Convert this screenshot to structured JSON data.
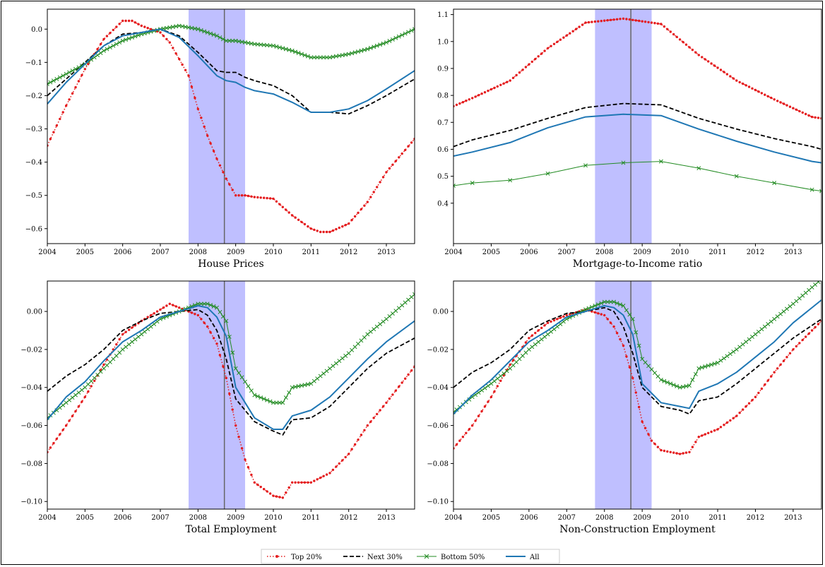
{
  "colors": {
    "top20": "#e41a1c",
    "next30": "#000000",
    "bottom50": "#228b22",
    "all": "#1f77b4",
    "recession": "#6666ff"
  },
  "legend": [
    "Top 20%",
    "Next 30%",
    "Bottom 50%",
    "All"
  ],
  "chart_data": [
    {
      "type": "line",
      "xlabel": "House Prices",
      "xlim": [
        2004,
        2013.75
      ],
      "ylim": [
        -0.645,
        0.06
      ],
      "xticks": [
        2004,
        2005,
        2006,
        2007,
        2008,
        2009,
        2010,
        2011,
        2012,
        2013
      ],
      "yticks": [
        0.0,
        -0.1,
        -0.2,
        -0.3,
        -0.4,
        -0.5,
        -0.6
      ],
      "recession_band": [
        2007.75,
        2009.25
      ],
      "vline": 2008.7,
      "series": [
        {
          "name": "Top 20%",
          "style": "dot",
          "x": [
            2004,
            2004.5,
            2005,
            2005.5,
            2006,
            2006.25,
            2006.5,
            2007,
            2007.25,
            2007.75,
            2008,
            2008.25,
            2008.5,
            2008.75,
            2009,
            2009.25,
            2009.5,
            2010,
            2010.5,
            2011,
            2011.25,
            2011.5,
            2012,
            2012.5,
            2013,
            2013.75
          ],
          "y": [
            -0.35,
            -0.23,
            -0.12,
            -0.03,
            0.025,
            0.025,
            0.01,
            -0.01,
            -0.04,
            -0.14,
            -0.24,
            -0.32,
            -0.39,
            -0.45,
            -0.5,
            -0.5,
            -0.505,
            -0.51,
            -0.56,
            -0.6,
            -0.61,
            -0.61,
            -0.585,
            -0.52,
            -0.43,
            -0.33
          ]
        },
        {
          "name": "Next 30%",
          "style": "dash",
          "x": [
            2004,
            2004.5,
            2005,
            2005.5,
            2006,
            2006.5,
            2007,
            2007.5,
            2008,
            2008.5,
            2008.75,
            2009,
            2009.25,
            2009.5,
            2010,
            2010.5,
            2011,
            2011.5,
            2012,
            2012.5,
            2013,
            2013.75
          ],
          "y": [
            -0.2,
            -0.15,
            -0.1,
            -0.05,
            -0.015,
            -0.01,
            0.0,
            -0.02,
            -0.07,
            -0.125,
            -0.13,
            -0.13,
            -0.145,
            -0.155,
            -0.17,
            -0.2,
            -0.25,
            -0.25,
            -0.255,
            -0.23,
            -0.2,
            -0.15
          ]
        },
        {
          "name": "Bottom 50%",
          "style": "x",
          "x": [
            2004,
            2004.5,
            2005,
            2005.5,
            2006,
            2006.5,
            2007,
            2007.5,
            2008,
            2008.5,
            2008.75,
            2009,
            2009.5,
            2010,
            2010.5,
            2011,
            2011.5,
            2012,
            2012.5,
            2013,
            2013.75
          ],
          "y": [
            -0.165,
            -0.135,
            -0.105,
            -0.065,
            -0.035,
            -0.015,
            0.0,
            0.01,
            0.0,
            -0.02,
            -0.035,
            -0.035,
            -0.045,
            -0.05,
            -0.065,
            -0.085,
            -0.085,
            -0.075,
            -0.06,
            -0.04,
            0.0
          ]
        },
        {
          "name": "All",
          "style": "solid",
          "x": [
            2004,
            2004.5,
            2005,
            2005.5,
            2006,
            2006.5,
            2007,
            2007.5,
            2008,
            2008.5,
            2008.75,
            2009,
            2009.25,
            2009.5,
            2010,
            2010.5,
            2011,
            2011.5,
            2012,
            2012.5,
            2013,
            2013.75
          ],
          "y": [
            -0.225,
            -0.16,
            -0.105,
            -0.05,
            -0.02,
            -0.01,
            0.0,
            -0.025,
            -0.08,
            -0.14,
            -0.155,
            -0.16,
            -0.175,
            -0.185,
            -0.195,
            -0.22,
            -0.25,
            -0.25,
            -0.24,
            -0.215,
            -0.18,
            -0.125
          ]
        }
      ]
    },
    {
      "type": "line",
      "xlabel": "Mortgage-to-Income ratio",
      "xlim": [
        2004,
        2013.75
      ],
      "ylim": [
        0.25,
        1.12
      ],
      "xticks": [
        2004,
        2005,
        2006,
        2007,
        2008,
        2009,
        2010,
        2011,
        2012,
        2013
      ],
      "yticks": [
        1.1,
        1.0,
        0.9,
        0.8,
        0.7,
        0.6,
        0.5,
        0.4
      ],
      "recession_band": [
        2007.75,
        2009.25
      ],
      "vline": 2008.7,
      "series": [
        {
          "name": "Top 20%",
          "style": "dot",
          "x": [
            2004,
            2004.5,
            2005.5,
            2006.5,
            2007.5,
            2008.5,
            2009.5,
            2010.5,
            2011.5,
            2012.5,
            2013.5,
            2013.75
          ],
          "y": [
            0.76,
            0.79,
            0.855,
            0.975,
            1.07,
            1.085,
            1.065,
            0.95,
            0.855,
            0.785,
            0.72,
            0.715
          ]
        },
        {
          "name": "Next 30%",
          "style": "dash",
          "x": [
            2004,
            2004.5,
            2005.5,
            2006.5,
            2007.5,
            2008.5,
            2009.5,
            2010.5,
            2011.5,
            2012.5,
            2013.5,
            2013.75
          ],
          "y": [
            0.61,
            0.635,
            0.67,
            0.715,
            0.755,
            0.77,
            0.765,
            0.715,
            0.675,
            0.64,
            0.61,
            0.6
          ]
        },
        {
          "name": "Bottom 50%",
          "style": "x",
          "x": [
            2004,
            2004.5,
            2005.5,
            2006.5,
            2007.5,
            2008.5,
            2009.5,
            2010.5,
            2011.5,
            2012.5,
            2013.5,
            2013.75
          ],
          "y": [
            0.465,
            0.475,
            0.485,
            0.51,
            0.54,
            0.55,
            0.555,
            0.53,
            0.5,
            0.475,
            0.45,
            0.445
          ]
        },
        {
          "name": "All",
          "style": "solid",
          "x": [
            2004,
            2004.5,
            2005.5,
            2006.5,
            2007.5,
            2008.5,
            2009.5,
            2010.5,
            2011.5,
            2012.5,
            2013.5,
            2013.75
          ],
          "y": [
            0.575,
            0.59,
            0.625,
            0.68,
            0.72,
            0.73,
            0.725,
            0.675,
            0.63,
            0.59,
            0.555,
            0.55
          ]
        }
      ]
    },
    {
      "type": "line",
      "xlabel": "Total Employment",
      "xlim": [
        2004,
        2013.75
      ],
      "ylim": [
        -0.104,
        0.016
      ],
      "xticks": [
        2004,
        2005,
        2006,
        2007,
        2008,
        2009,
        2010,
        2011,
        2012,
        2013
      ],
      "yticks": [
        0.0,
        -0.02,
        -0.04,
        -0.06,
        -0.08,
        -0.1
      ],
      "recession_band": [
        2007.75,
        2009.25
      ],
      "vline": 2008.7,
      "series": [
        {
          "name": "Top 20%",
          "style": "dot",
          "x": [
            2004,
            2004.5,
            2005,
            2005.5,
            2006,
            2006.5,
            2007,
            2007.25,
            2007.5,
            2008,
            2008.25,
            2008.5,
            2008.75,
            2009,
            2009.25,
            2009.5,
            2010,
            2010.25,
            2010.5,
            2011,
            2011.5,
            2012,
            2012.5,
            2013,
            2013.75
          ],
          "y": [
            -0.074,
            -0.06,
            -0.045,
            -0.028,
            -0.012,
            -0.005,
            0.001,
            0.004,
            0.002,
            -0.002,
            -0.008,
            -0.017,
            -0.035,
            -0.06,
            -0.078,
            -0.09,
            -0.097,
            -0.098,
            -0.09,
            -0.09,
            -0.085,
            -0.075,
            -0.06,
            -0.048,
            -0.029
          ]
        },
        {
          "name": "Next 30%",
          "style": "dash",
          "x": [
            2004,
            2004.5,
            2005,
            2005.5,
            2006,
            2006.5,
            2007,
            2007.5,
            2008,
            2008.25,
            2008.5,
            2008.75,
            2009,
            2009.5,
            2010,
            2010.25,
            2010.5,
            2011,
            2011.5,
            2012,
            2012.5,
            2013,
            2013.75
          ],
          "y": [
            -0.042,
            -0.034,
            -0.028,
            -0.02,
            -0.01,
            -0.005,
            -0.001,
            0.0,
            0.001,
            -0.002,
            -0.01,
            -0.025,
            -0.046,
            -0.058,
            -0.063,
            -0.065,
            -0.057,
            -0.056,
            -0.05,
            -0.04,
            -0.03,
            -0.022,
            -0.014
          ]
        },
        {
          "name": "Bottom 50%",
          "style": "x",
          "x": [
            2004,
            2004.5,
            2005,
            2005.5,
            2006,
            2006.5,
            2007,
            2007.5,
            2008,
            2008.25,
            2008.5,
            2008.75,
            2009,
            2009.5,
            2010,
            2010.25,
            2010.5,
            2011,
            2011.5,
            2012,
            2012.5,
            2013,
            2013.75
          ],
          "y": [
            -0.056,
            -0.048,
            -0.04,
            -0.03,
            -0.02,
            -0.012,
            -0.004,
            0.0,
            0.004,
            0.004,
            0.002,
            -0.005,
            -0.03,
            -0.044,
            -0.048,
            -0.048,
            -0.04,
            -0.038,
            -0.03,
            -0.022,
            -0.012,
            -0.004,
            0.009
          ]
        },
        {
          "name": "All",
          "style": "solid",
          "x": [
            2004,
            2004.5,
            2005,
            2005.5,
            2006,
            2006.5,
            2007,
            2007.5,
            2008,
            2008.25,
            2008.5,
            2008.75,
            2009,
            2009.5,
            2010,
            2010.25,
            2010.5,
            2011,
            2011.5,
            2012,
            2012.5,
            2013,
            2013.75
          ],
          "y": [
            -0.057,
            -0.045,
            -0.037,
            -0.026,
            -0.016,
            -0.01,
            -0.003,
            0.0,
            0.003,
            0.002,
            -0.003,
            -0.013,
            -0.04,
            -0.056,
            -0.062,
            -0.062,
            -0.055,
            -0.052,
            -0.045,
            -0.035,
            -0.025,
            -0.016,
            -0.005
          ]
        }
      ]
    },
    {
      "type": "line",
      "xlabel": "Non-Construction Employment",
      "xlim": [
        2004,
        2013.75
      ],
      "ylim": [
        -0.104,
        0.016
      ],
      "xticks": [
        2004,
        2005,
        2006,
        2007,
        2008,
        2009,
        2010,
        2011,
        2012,
        2013
      ],
      "yticks": [
        0.0,
        -0.02,
        -0.04,
        -0.06,
        -0.08,
        -0.1
      ],
      "recession_band": [
        2007.75,
        2009.25
      ],
      "vline": 2008.7,
      "series": [
        {
          "name": "Top 20%",
          "style": "dot",
          "x": [
            2004,
            2004.5,
            2005,
            2005.5,
            2006,
            2006.5,
            2007,
            2007.5,
            2008,
            2008.25,
            2008.5,
            2008.75,
            2009,
            2009.25,
            2009.5,
            2010,
            2010.25,
            2010.5,
            2011,
            2011.5,
            2012,
            2012.5,
            2013,
            2013.75
          ],
          "y": [
            -0.072,
            -0.06,
            -0.045,
            -0.028,
            -0.014,
            -0.006,
            -0.002,
            0.001,
            -0.002,
            -0.008,
            -0.018,
            -0.035,
            -0.058,
            -0.068,
            -0.073,
            -0.075,
            -0.074,
            -0.066,
            -0.062,
            -0.055,
            -0.045,
            -0.032,
            -0.02,
            -0.005
          ]
        },
        {
          "name": "Next 30%",
          "style": "dash",
          "x": [
            2004,
            2004.5,
            2005,
            2005.5,
            2006,
            2006.5,
            2007,
            2007.5,
            2008,
            2008.25,
            2008.5,
            2008.75,
            2009,
            2009.5,
            2010,
            2010.25,
            2010.5,
            2011,
            2011.5,
            2012,
            2012.5,
            2013,
            2013.75
          ],
          "y": [
            -0.04,
            -0.032,
            -0.027,
            -0.02,
            -0.01,
            -0.005,
            -0.001,
            0.0,
            0.002,
            0.0,
            -0.008,
            -0.022,
            -0.04,
            -0.05,
            -0.052,
            -0.054,
            -0.047,
            -0.045,
            -0.038,
            -0.03,
            -0.022,
            -0.014,
            -0.004
          ]
        },
        {
          "name": "Bottom 50%",
          "style": "x",
          "x": [
            2004,
            2004.5,
            2005,
            2005.5,
            2006,
            2006.5,
            2007,
            2007.5,
            2008,
            2008.25,
            2008.5,
            2008.75,
            2009,
            2009.5,
            2010,
            2010.25,
            2010.5,
            2011,
            2011.5,
            2012,
            2012.5,
            2013,
            2013.75
          ],
          "y": [
            -0.053,
            -0.045,
            -0.038,
            -0.03,
            -0.02,
            -0.012,
            -0.004,
            0.001,
            0.005,
            0.005,
            0.003,
            -0.004,
            -0.025,
            -0.036,
            -0.04,
            -0.039,
            -0.03,
            -0.027,
            -0.02,
            -0.012,
            -0.004,
            0.004,
            0.017
          ]
        },
        {
          "name": "All",
          "style": "solid",
          "x": [
            2004,
            2004.5,
            2005,
            2005.5,
            2006,
            2006.5,
            2007,
            2007.5,
            2008,
            2008.25,
            2008.5,
            2008.75,
            2009,
            2009.5,
            2010,
            2010.25,
            2010.5,
            2011,
            2011.5,
            2012,
            2012.5,
            2013,
            2013.75
          ],
          "y": [
            -0.054,
            -0.044,
            -0.036,
            -0.026,
            -0.016,
            -0.01,
            -0.003,
            0.0,
            0.003,
            0.002,
            -0.002,
            -0.012,
            -0.038,
            -0.048,
            -0.05,
            -0.051,
            -0.042,
            -0.038,
            -0.032,
            -0.024,
            -0.016,
            -0.006,
            0.006
          ]
        }
      ]
    }
  ]
}
